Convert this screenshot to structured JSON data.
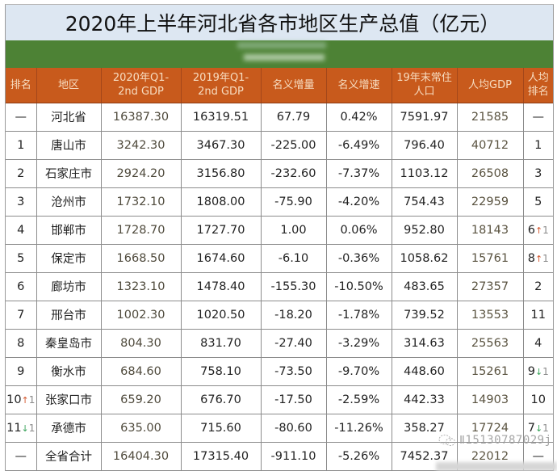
{
  "title": "2020年上半年河北省各市地区生产总值（亿元）",
  "colors": {
    "title_band": "#dde7f2",
    "green_band": "#4d8235",
    "header_bg": "#c85a1c",
    "header_text": "#f7dcc0",
    "arrow_up": "#d2562e",
    "arrow_down": "#3aa35a"
  },
  "table": {
    "headers": [
      "排名",
      "地区",
      "2020年Q1-2nd GDP",
      "2019年Q1-2nd GDP",
      "名义增量",
      "名义增速",
      "19年末常住人口",
      "人均GDP",
      "人均排名"
    ],
    "header_lines": [
      [
        "排名"
      ],
      [
        "地区"
      ],
      [
        "2020年Q1-",
        "2nd GDP"
      ],
      [
        "2019年Q1-",
        "2nd GDP"
      ],
      [
        "名义增量"
      ],
      [
        "名义增速"
      ],
      [
        "19年末常住",
        "人口"
      ],
      [
        "人均GDP"
      ],
      [
        "人均",
        "排名"
      ]
    ],
    "rows": [
      {
        "rank": "—",
        "rank_change": null,
        "region": "河北省",
        "gdp_2020": "16387.30",
        "gdp_2019": "16319.51",
        "increment": "67.79",
        "growth": "0.42%",
        "population": "7591.97",
        "per_capita": "21585",
        "pc_rank": "—",
        "pc_rank_change": null
      },
      {
        "rank": "1",
        "rank_change": null,
        "region": "唐山市",
        "gdp_2020": "3242.30",
        "gdp_2019": "3467.30",
        "increment": "-225.00",
        "growth": "-6.49%",
        "population": "796.40",
        "per_capita": "40712",
        "pc_rank": "1",
        "pc_rank_change": null
      },
      {
        "rank": "2",
        "rank_change": null,
        "region": "石家庄市",
        "gdp_2020": "2924.20",
        "gdp_2019": "3156.80",
        "increment": "-232.60",
        "growth": "-7.37%",
        "population": "1103.12",
        "per_capita": "26508",
        "pc_rank": "3",
        "pc_rank_change": null
      },
      {
        "rank": "3",
        "rank_change": null,
        "region": "沧州市",
        "gdp_2020": "1732.10",
        "gdp_2019": "1808.00",
        "increment": "-75.90",
        "growth": "-4.20%",
        "population": "754.43",
        "per_capita": "22959",
        "pc_rank": "5",
        "pc_rank_change": null
      },
      {
        "rank": "4",
        "rank_change": null,
        "region": "邯郸市",
        "gdp_2020": "1728.70",
        "gdp_2019": "1727.70",
        "increment": "1.00",
        "growth": "0.06%",
        "population": "952.80",
        "per_capita": "18143",
        "pc_rank": "6",
        "pc_rank_change": {
          "dir": "up",
          "arrow": "↑",
          "amount": "1"
        }
      },
      {
        "rank": "5",
        "rank_change": null,
        "region": "保定市",
        "gdp_2020": "1668.50",
        "gdp_2019": "1674.60",
        "increment": "-6.10",
        "growth": "-0.36%",
        "population": "1058.62",
        "per_capita": "15761",
        "pc_rank": "8",
        "pc_rank_change": {
          "dir": "up",
          "arrow": "↑",
          "amount": "1"
        }
      },
      {
        "rank": "6",
        "rank_change": null,
        "region": "廊坊市",
        "gdp_2020": "1323.10",
        "gdp_2019": "1478.40",
        "increment": "-155.30",
        "growth": "-10.50%",
        "population": "483.65",
        "per_capita": "27357",
        "pc_rank": "2",
        "pc_rank_change": null
      },
      {
        "rank": "7",
        "rank_change": null,
        "region": "邢台市",
        "gdp_2020": "1002.30",
        "gdp_2019": "1020.50",
        "increment": "-18.20",
        "growth": "-1.78%",
        "population": "739.52",
        "per_capita": "13553",
        "pc_rank": "11",
        "pc_rank_change": null
      },
      {
        "rank": "8",
        "rank_change": null,
        "region": "秦皇岛市",
        "gdp_2020": "804.30",
        "gdp_2019": "831.70",
        "increment": "-27.40",
        "growth": "-3.29%",
        "population": "314.63",
        "per_capita": "25563",
        "pc_rank": "4",
        "pc_rank_change": null
      },
      {
        "rank": "9",
        "rank_change": null,
        "region": "衡水市",
        "gdp_2020": "684.60",
        "gdp_2019": "758.10",
        "increment": "-73.50",
        "growth": "-9.70%",
        "population": "448.60",
        "per_capita": "15261",
        "pc_rank": "9",
        "pc_rank_change": {
          "dir": "down",
          "arrow": "↓",
          "amount": "1"
        }
      },
      {
        "rank": "10",
        "rank_change": {
          "dir": "up",
          "arrow": "↑",
          "amount": "1"
        },
        "region": "张家口市",
        "gdp_2020": "659.20",
        "gdp_2019": "676.70",
        "increment": "-17.50",
        "growth": "-2.59%",
        "population": "442.33",
        "per_capita": "14903",
        "pc_rank": "10",
        "pc_rank_change": null
      },
      {
        "rank": "11",
        "rank_change": {
          "dir": "down",
          "arrow": "↓",
          "amount": "1"
        },
        "region": "承德市",
        "gdp_2020": "635.00",
        "gdp_2019": "715.60",
        "increment": "-80.60",
        "growth": "-11.26%",
        "population": "358.27",
        "per_capita": "17724",
        "pc_rank": "7",
        "pc_rank_change": {
          "dir": "down",
          "arrow": "↓",
          "amount": "1"
        }
      },
      {
        "rank": "—",
        "rank_change": null,
        "region": "全省合计",
        "gdp_2020": "16404.30",
        "gdp_2019": "17315.40",
        "increment": "-911.10",
        "growth": "-5.26%",
        "population": "7452.37",
        "per_capita": "22012",
        "pc_rank": "—",
        "pc_rank_change": null
      }
    ]
  },
  "watermark": {
    "text": "Ⅱ15130787029j",
    "icon": "wechat-logo-icon"
  }
}
